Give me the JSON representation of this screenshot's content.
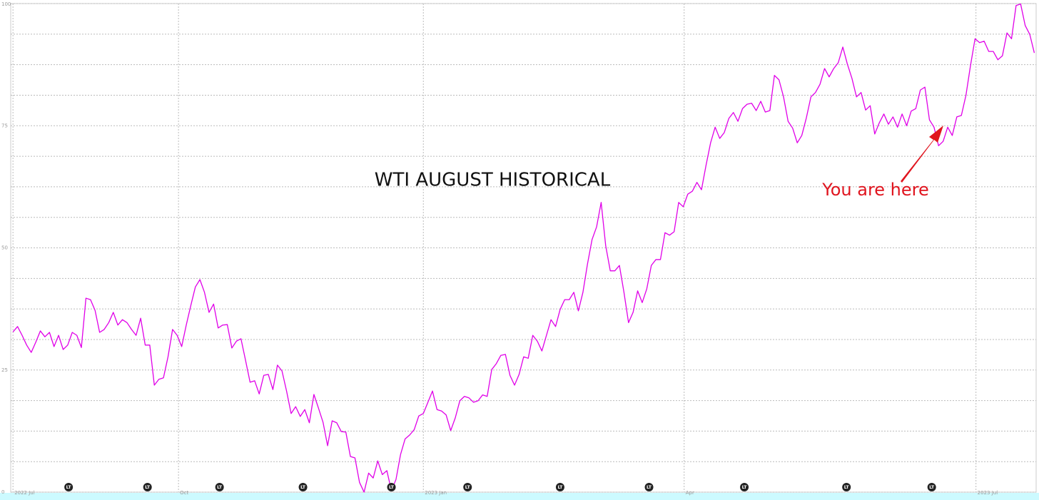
{
  "chart_data": {
    "type": "line",
    "title": "WTI AUGUST HISTORICAL",
    "annotation": "You are here",
    "series": [
      {
        "color": "#e000e8",
        "values": [
          32.8,
          33.9,
          32.1,
          30.1,
          28.6,
          30.7,
          33.0,
          31.8,
          32.7,
          29.8,
          32.1,
          29.2,
          30.1,
          32.7,
          32.1,
          29.6,
          39.7,
          39.4,
          37.2,
          32.7,
          33.3,
          34.7,
          36.8,
          34.2,
          35.3,
          34.7,
          33.3,
          32.1,
          35.6,
          30.1,
          30.1,
          21.9,
          23.1,
          23.4,
          27.7,
          33.3,
          32.1,
          29.8,
          34.2,
          38.2,
          42.0,
          43.5,
          40.9,
          36.8,
          38.5,
          33.6,
          34.2,
          34.3,
          29.5,
          30.9,
          31.4,
          27.0,
          22.5,
          22.8,
          20.1,
          23.9,
          24.1,
          21.0,
          26.0,
          24.8,
          20.7,
          16.1,
          17.5,
          15.5,
          16.9,
          14.2,
          20.0,
          17.2,
          14.3,
          9.5,
          14.6,
          14.2,
          12.4,
          12.3,
          7.3,
          7.0,
          2.0,
          0,
          3.9,
          2.9,
          6.4,
          3.6,
          4.4,
          0.3,
          2.6,
          7.7,
          10.9,
          11.7,
          12.8,
          15.6,
          16.1,
          18.4,
          20.7,
          16.9,
          16.6,
          15.8,
          12.6,
          15.2,
          18.7,
          19.6,
          19.3,
          18.4,
          18.7,
          19.9,
          19.6,
          25.1,
          26.3,
          28.0,
          28.2,
          23.9,
          21.9,
          24.1,
          27.7,
          27.4,
          32.1,
          30.9,
          28.9,
          32.1,
          35.3,
          33.9,
          37.4,
          39.4,
          39.4,
          40.9,
          37.1,
          40.9,
          46.7,
          51.7,
          54.3,
          59.3,
          50.4,
          45.3,
          45.3,
          46.4,
          40.9,
          34.7,
          36.8,
          41.2,
          38.8,
          41.6,
          46.4,
          47.6,
          47.6,
          53.1,
          52.6,
          53.3,
          59.3,
          58.4,
          61.0,
          61.6,
          63.4,
          61.9,
          66.9,
          71.5,
          74.7,
          72.4,
          73.6,
          76.5,
          77.7,
          75.9,
          78.5,
          79.4,
          79.6,
          78.1,
          80.0,
          77.8,
          78.1,
          85.3,
          84.4,
          80.9,
          75.9,
          74.5,
          71.5,
          73.0,
          76.6,
          80.9,
          81.8,
          83.5,
          86.7,
          85.0,
          86.7,
          87.9,
          91.1,
          87.6,
          84.7,
          80.9,
          81.8,
          78.2,
          79.1,
          73.3,
          75.6,
          77.4,
          75.3,
          76.8,
          74.7,
          77.4,
          75.0,
          78.0,
          78.5,
          82.3,
          82.9,
          76.2,
          74.7,
          70.9,
          71.8,
          74.7,
          73.0,
          76.8,
          77.1,
          81.2,
          87.3,
          92.8,
          92.0,
          92.3,
          90.2,
          90.2,
          88.5,
          89.3,
          94.0,
          92.8,
          99.6,
          99.9,
          95.5,
          93.7,
          89.9
        ]
      }
    ],
    "xlim": [
      -0.5,
      224.4
    ],
    "xticks": [
      {
        "value": 0,
        "label": "2022 Jul"
      },
      {
        "value": 36.3,
        "label": "Oct"
      },
      {
        "value": 90,
        "label": "2023 Jan"
      },
      {
        "value": 147.2,
        "label": "Apr"
      },
      {
        "value": 211.2,
        "label": "2023 Jul"
      }
    ],
    "ylim": [
      0,
      100
    ],
    "yticks": [
      0,
      25,
      50,
      75,
      100
    ],
    "y_minor_grid": [
      6.25,
      12.5,
      18.75,
      31.25,
      37.5,
      43.75,
      56.25,
      62.5,
      68.75,
      81.25,
      87.5,
      93.75
    ],
    "grid": true,
    "markers": [
      {
        "x": 12.2,
        "label": "LT"
      },
      {
        "x": 29.5,
        "label": "LT"
      },
      {
        "x": 45.3,
        "label": "LT"
      },
      {
        "x": 63.6,
        "label": "LT"
      },
      {
        "x": 83,
        "label": "LT"
      },
      {
        "x": 99.7,
        "label": "LT"
      },
      {
        "x": 120,
        "label": "LT"
      },
      {
        "x": 139.5,
        "label": "LT"
      },
      {
        "x": 160.4,
        "label": "LT"
      },
      {
        "x": 182.8,
        "label": "LT"
      },
      {
        "x": 201.5,
        "label": "LT"
      }
    ]
  }
}
